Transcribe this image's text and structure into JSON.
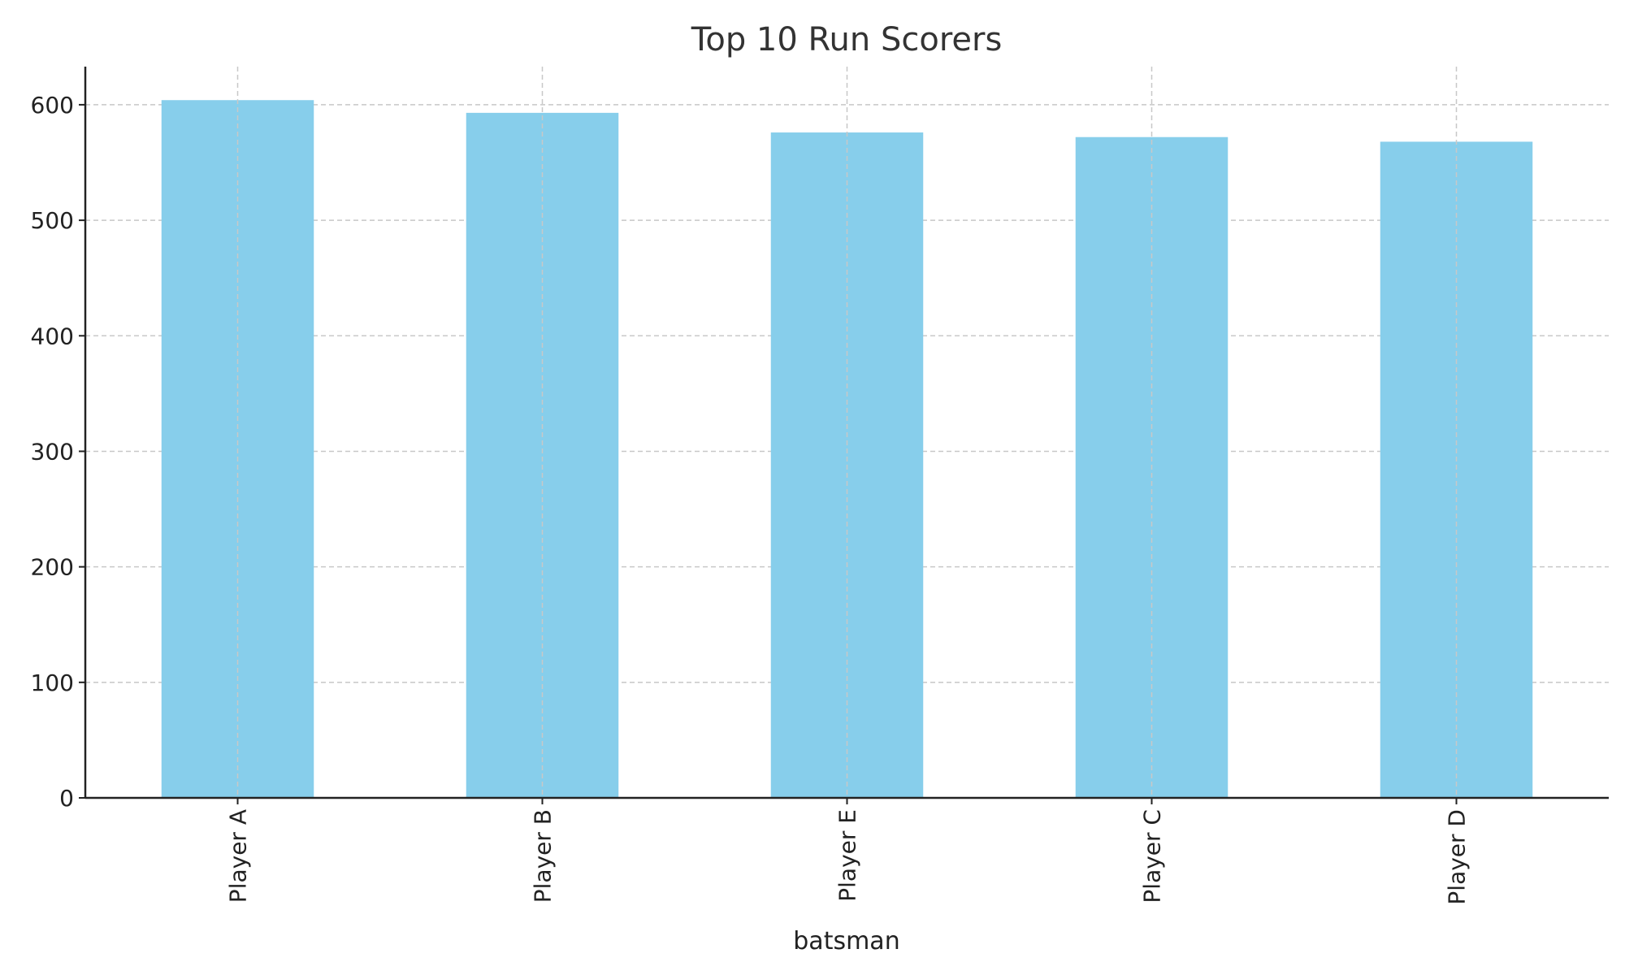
{
  "chart_data": {
    "type": "bar",
    "title": "Top 10 Run Scorers",
    "xlabel": "batsman",
    "ylabel": "",
    "categories": [
      "Player A",
      "Player B",
      "Player E",
      "Player C",
      "Player D"
    ],
    "values": [
      604,
      593,
      576,
      572,
      568
    ],
    "ylim": [
      0,
      633
    ],
    "yticks": [
      0,
      100,
      200,
      300,
      400,
      500,
      600
    ],
    "grid": true,
    "bar_color": "#87CEEB",
    "legend": "none"
  }
}
